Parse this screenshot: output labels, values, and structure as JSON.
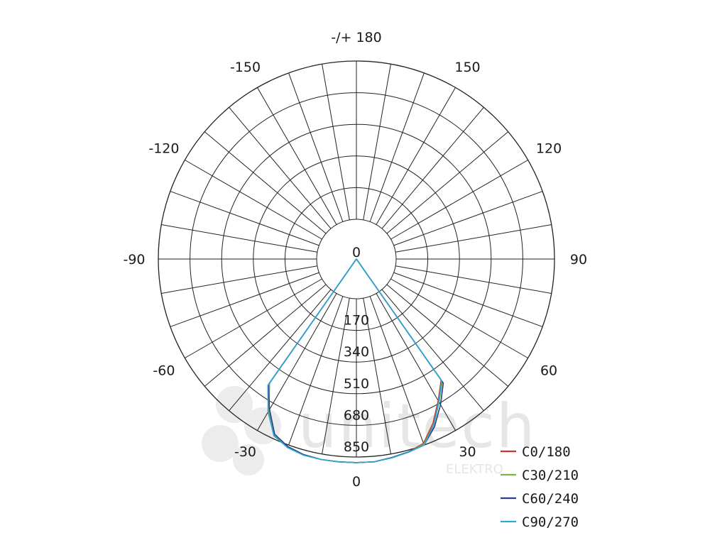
{
  "chart_data": {
    "type": "polar",
    "angle_labels": [
      {
        "text": "-/+ 180",
        "deg": 180
      },
      {
        "text": "150",
        "deg": 150
      },
      {
        "text": "-150",
        "deg": -150
      },
      {
        "text": "120",
        "deg": 120
      },
      {
        "text": "-120",
        "deg": -120
      },
      {
        "text": "90",
        "deg": 90
      },
      {
        "text": "-90",
        "deg": -90
      },
      {
        "text": "60",
        "deg": 60
      },
      {
        "text": "-60",
        "deg": -60
      },
      {
        "text": "30",
        "deg": 30
      },
      {
        "text": "-30",
        "deg": -30
      },
      {
        "text": "0",
        "deg": 0
      }
    ],
    "radial_ticks": [
      170,
      340,
      510,
      680,
      850
    ],
    "radial_max": 850,
    "center_label": "0",
    "angle_grid_step_deg": 10,
    "series": [
      {
        "name": "C0/180",
        "color": "#c0392b",
        "angles": [
          -40,
          -35,
          -30,
          -25,
          -20,
          -15,
          -10,
          -5,
          0,
          5,
          10,
          15,
          20,
          25,
          30,
          35,
          40
        ],
        "values": [
          0,
          600,
          730,
          830,
          860,
          875,
          880,
          880,
          880,
          880,
          870,
          860,
          840,
          760,
          665,
          580,
          0
        ]
      },
      {
        "name": "C30/210",
        "color": "#7cb342",
        "angles": [
          -40,
          -35,
          -30,
          -25,
          -20,
          -15,
          -10,
          -5,
          0,
          5,
          10,
          15,
          20,
          25,
          30,
          35,
          40
        ],
        "values": [
          0,
          600,
          725,
          830,
          860,
          875,
          880,
          880,
          880,
          880,
          870,
          860,
          845,
          770,
          675,
          590,
          0
        ]
      },
      {
        "name": "C60/240",
        "color": "#2c3e8c",
        "angles": [
          -40,
          -35,
          -30,
          -25,
          -20,
          -15,
          -10,
          -5,
          0,
          5,
          10,
          15,
          20,
          25,
          30,
          35,
          40
        ],
        "values": [
          0,
          610,
          720,
          825,
          860,
          875,
          880,
          880,
          880,
          880,
          870,
          860,
          850,
          780,
          690,
          600,
          0
        ]
      },
      {
        "name": "C90/270",
        "color": "#2aa7d6",
        "angles": [
          -40,
          -35,
          -30,
          -25,
          -20,
          -15,
          -10,
          -5,
          0,
          5,
          10,
          15,
          20,
          25,
          30,
          35,
          40
        ],
        "values": [
          0,
          615,
          735,
          835,
          865,
          878,
          880,
          880,
          880,
          880,
          872,
          862,
          850,
          770,
          670,
          585,
          0
        ]
      }
    ],
    "legend_position": "bottom-right"
  },
  "watermark": {
    "text": "unitech",
    "subtext": "ELEKTRO"
  }
}
